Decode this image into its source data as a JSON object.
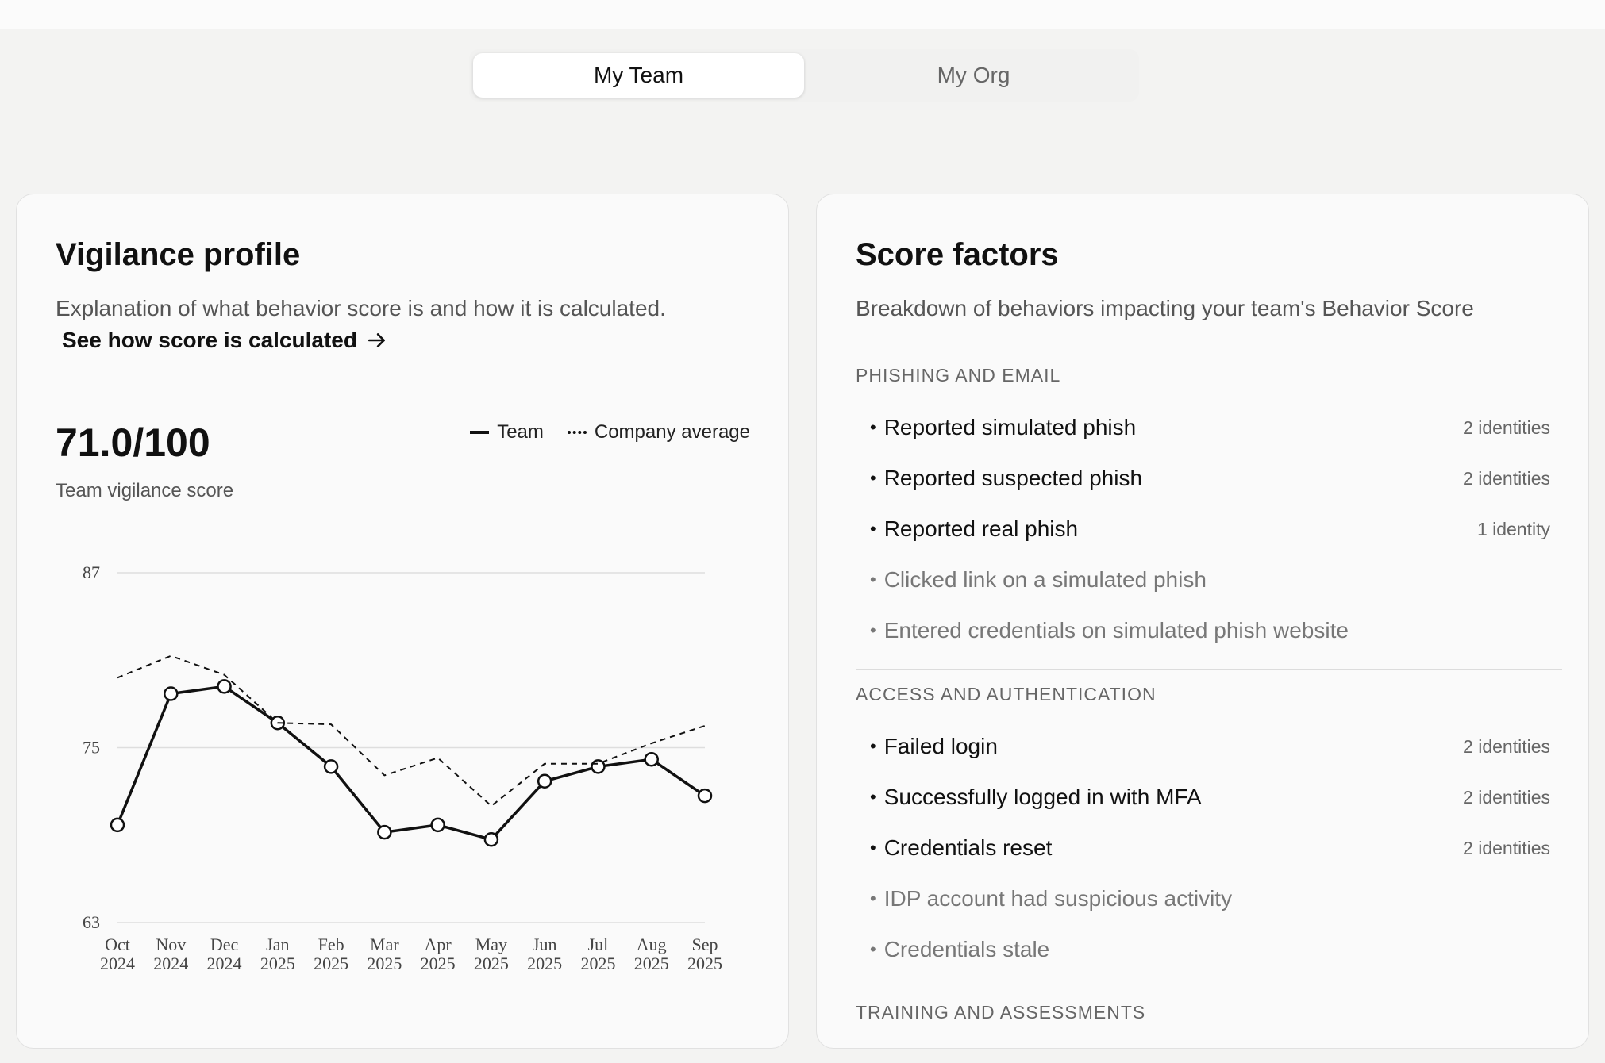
{
  "tabs": [
    "My Team",
    "My Org"
  ],
  "vigilance": {
    "title": "Vigilance profile",
    "description": "Explanation of what behavior score is and how it is calculated.",
    "link": "See how score is calculated",
    "score": "71.0/100",
    "score_label": "Team vigilance score",
    "legend": {
      "team": "Team",
      "company": "Company average"
    }
  },
  "chart_data": {
    "type": "line",
    "x": [
      "Oct 2024",
      "Nov 2024",
      "Dec 2024",
      "Jan 2025",
      "Feb 2025",
      "Mar 2025",
      "Apr 2025",
      "May 2025",
      "Jun 2025",
      "Jul 2025",
      "Aug 2025",
      "Sep 2025"
    ],
    "ylim": [
      63,
      87
    ],
    "yticks": [
      63,
      75,
      87
    ],
    "grid": true,
    "legend_position": "top-right",
    "series": [
      {
        "name": "Team",
        "style": "solid",
        "markers": true,
        "values": [
          69.7,
          78.7,
          79.2,
          76.7,
          73.7,
          69.2,
          69.7,
          68.7,
          72.7,
          73.7,
          74.2,
          71.7
        ]
      },
      {
        "name": "Company average",
        "style": "dashed",
        "markers": false,
        "values": [
          79.8,
          81.3,
          80.0,
          76.7,
          76.6,
          73.1,
          74.3,
          71.0,
          73.9,
          73.9,
          75.3,
          76.5
        ]
      }
    ]
  },
  "factors": {
    "title": "Score factors",
    "subtitle": "Breakdown of behaviors impacting your team's Behavior Score",
    "sections": [
      {
        "heading": "PHISHING AND EMAIL",
        "items": [
          {
            "label": "Reported simulated phish",
            "count": "2 identities",
            "active": true
          },
          {
            "label": "Reported suspected phish",
            "count": "2 identities",
            "active": true
          },
          {
            "label": "Reported real phish",
            "count": "1 identity",
            "active": true
          },
          {
            "label": "Clicked link on a simulated phish",
            "count": "",
            "active": false
          },
          {
            "label": "Entered credentials on simulated phish website",
            "count": "",
            "active": false
          }
        ]
      },
      {
        "heading": "ACCESS AND AUTHENTICATION",
        "items": [
          {
            "label": "Failed login",
            "count": "2 identities",
            "active": true
          },
          {
            "label": "Successfully logged in with MFA",
            "count": "2 identities",
            "active": true
          },
          {
            "label": "Credentials reset",
            "count": "2 identities",
            "active": true
          },
          {
            "label": "IDP account had suspicious activity",
            "count": "",
            "active": false
          },
          {
            "label": "Credentials stale",
            "count": "",
            "active": false
          }
        ]
      },
      {
        "heading": "TRAINING AND ASSESSMENTS",
        "items": []
      }
    ]
  }
}
